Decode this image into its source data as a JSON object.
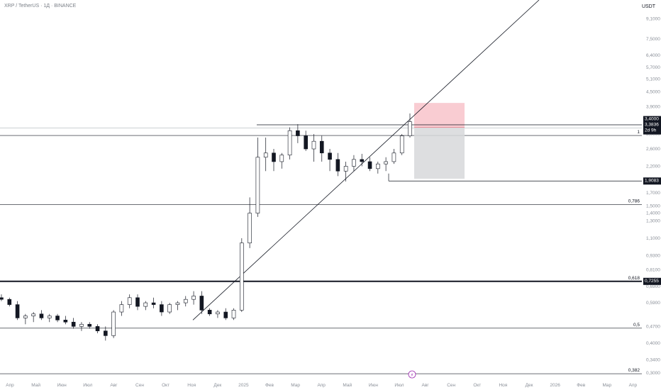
{
  "header": {
    "symbol_line": "XRP / TetherUS · 1Д · BINANCE",
    "currency": "USDT"
  },
  "colors": {
    "up": "#ffffff",
    "down": "#131722",
    "wick": "#131722",
    "line": "#131722",
    "grid": "#d1d4dc",
    "risk": "#f7b6bf",
    "reward": "#d7d8db",
    "tag_bg": "#131722"
  },
  "price_tags": {
    "current": "3,4000",
    "current_sub": "3,3836",
    "countdown": "2d 9h",
    "support": "1,9083",
    "fib_level": "0,7255"
  },
  "fib_levels": [
    {
      "label": "1",
      "price": 2.96
    },
    {
      "label": "0,786",
      "price": 1.52
    },
    {
      "label": "0,618",
      "price": 0.7255
    },
    {
      "label": "0,5",
      "price": 0.462
    },
    {
      "label": "0,382",
      "price": 0.298
    }
  ],
  "chart_data": {
    "type": "candlestick",
    "title": "XRP / TetherUS · 1Д · BINANCE",
    "yscale": "log",
    "ylim": [
      0.29,
      10.2
    ],
    "y_ticks": [
      "9,1000",
      "7,5000",
      "6,4000",
      "5,7000",
      "5,1000",
      "4,5000",
      "3,9000",
      "3,4000",
      "3,0000",
      "2,6000",
      "2,2000",
      "1,7000",
      "1,5000",
      "1,4000",
      "1,3000",
      "1,1000",
      "0,9300",
      "0,8100",
      "0,6900",
      "0,5900",
      "0,4700",
      "0,4000",
      "0,3400",
      "0,3000"
    ],
    "x_ticks": [
      "Апр",
      "Май",
      "Июн",
      "Июл",
      "Авг",
      "Сен",
      "Окт",
      "Ноя",
      "Дек",
      "2025",
      "Фев",
      "Мар",
      "Апр",
      "Май",
      "Июн",
      "Июл",
      "Авг",
      "Сен",
      "Окт",
      "Ноя",
      "Дек",
      "2026",
      "Фев",
      "Мар",
      "Апр"
    ],
    "weekly_candles": [
      [
        0.62,
        0.64,
        0.6,
        0.61
      ],
      [
        0.61,
        0.62,
        0.57,
        0.58
      ],
      [
        0.58,
        0.6,
        0.5,
        0.51
      ],
      [
        0.51,
        0.53,
        0.48,
        0.52
      ],
      [
        0.52,
        0.54,
        0.49,
        0.53
      ],
      [
        0.53,
        0.55,
        0.5,
        0.51
      ],
      [
        0.51,
        0.53,
        0.49,
        0.52
      ],
      [
        0.52,
        0.53,
        0.49,
        0.5
      ],
      [
        0.5,
        0.52,
        0.48,
        0.49
      ],
      [
        0.49,
        0.51,
        0.46,
        0.47
      ],
      [
        0.47,
        0.49,
        0.45,
        0.48
      ],
      [
        0.48,
        0.49,
        0.46,
        0.47
      ],
      [
        0.47,
        0.48,
        0.44,
        0.45
      ],
      [
        0.45,
        0.47,
        0.41,
        0.43
      ],
      [
        0.43,
        0.55,
        0.42,
        0.54
      ],
      [
        0.54,
        0.6,
        0.52,
        0.58
      ],
      [
        0.58,
        0.64,
        0.56,
        0.62
      ],
      [
        0.62,
        0.64,
        0.55,
        0.57
      ],
      [
        0.57,
        0.6,
        0.55,
        0.59
      ],
      [
        0.59,
        0.62,
        0.56,
        0.58
      ],
      [
        0.58,
        0.6,
        0.52,
        0.54
      ],
      [
        0.54,
        0.59,
        0.53,
        0.58
      ],
      [
        0.58,
        0.6,
        0.55,
        0.59
      ],
      [
        0.59,
        0.63,
        0.57,
        0.61
      ],
      [
        0.61,
        0.66,
        0.58,
        0.63
      ],
      [
        0.63,
        0.66,
        0.53,
        0.55
      ],
      [
        0.55,
        0.56,
        0.52,
        0.53
      ],
      [
        0.53,
        0.55,
        0.51,
        0.54
      ],
      [
        0.54,
        0.56,
        0.5,
        0.51
      ],
      [
        0.51,
        0.56,
        0.5,
        0.55
      ],
      [
        0.55,
        1.1,
        0.54,
        1.05
      ],
      [
        1.05,
        1.63,
        1.0,
        1.4
      ],
      [
        1.4,
        2.9,
        1.35,
        2.4
      ],
      [
        2.4,
        2.9,
        2.1,
        2.5
      ],
      [
        2.5,
        2.6,
        2.1,
        2.3
      ],
      [
        2.3,
        2.5,
        2.15,
        2.45
      ],
      [
        2.45,
        3.2,
        2.35,
        3.1
      ],
      [
        3.1,
        3.3,
        2.75,
        2.95
      ],
      [
        2.95,
        3.1,
        2.55,
        2.6
      ],
      [
        2.6,
        3.0,
        2.3,
        2.8
      ],
      [
        2.8,
        2.95,
        2.3,
        2.5
      ],
      [
        2.5,
        2.6,
        2.1,
        2.35
      ],
      [
        2.35,
        2.5,
        2.0,
        2.1
      ],
      [
        2.1,
        2.3,
        1.9,
        2.2
      ],
      [
        2.2,
        2.45,
        2.1,
        2.35
      ],
      [
        2.35,
        2.48,
        2.2,
        2.3
      ],
      [
        2.3,
        2.4,
        2.1,
        2.15
      ],
      [
        2.15,
        2.3,
        2.05,
        2.25
      ],
      [
        2.25,
        2.4,
        2.1,
        2.3
      ],
      [
        2.3,
        2.6,
        2.25,
        2.5
      ],
      [
        2.5,
        3.0,
        2.45,
        2.95
      ],
      [
        2.95,
        3.66,
        2.9,
        3.38
      ]
    ]
  }
}
